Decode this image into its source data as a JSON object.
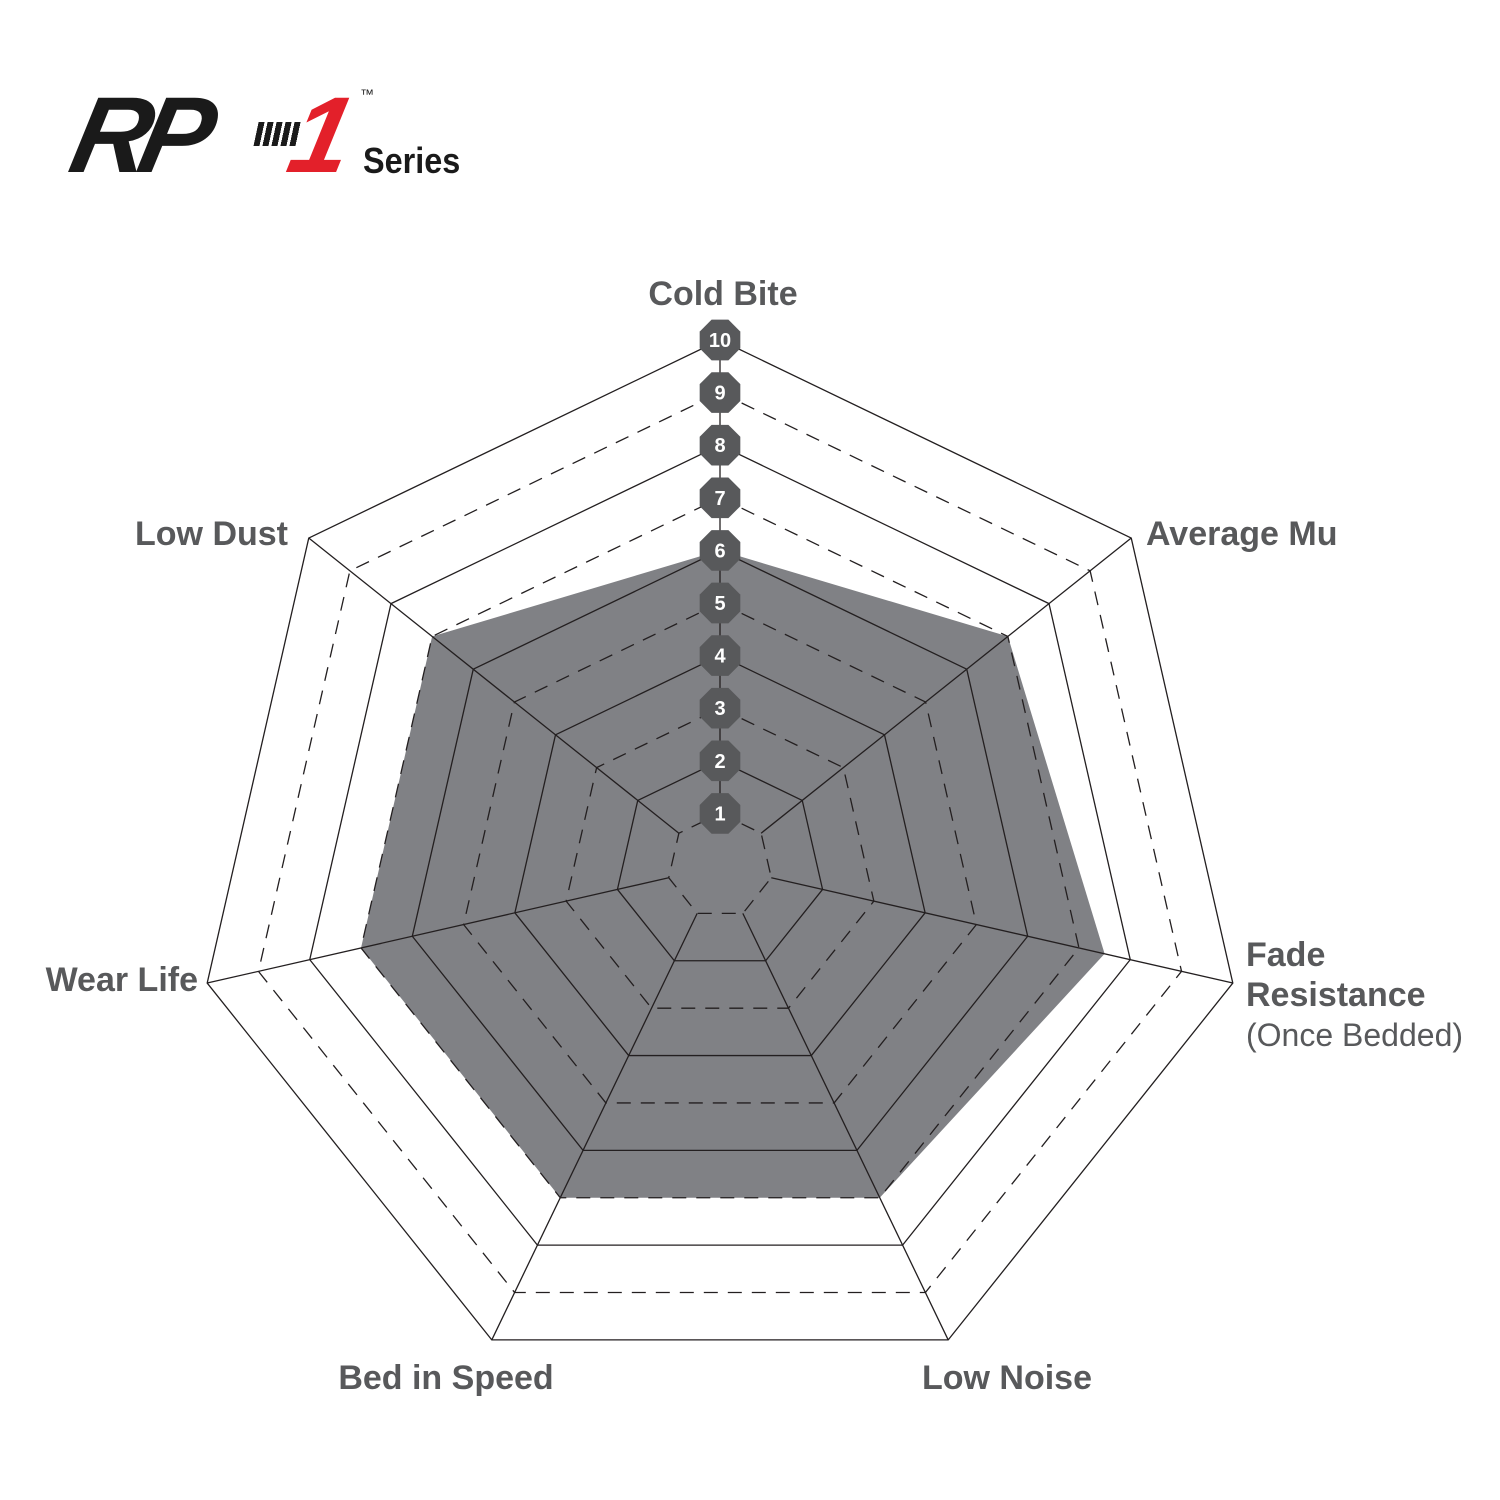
{
  "logo": {
    "text_rp": "RP",
    "text_one": "1",
    "trademark": "™",
    "series": "Series"
  },
  "chart_data": {
    "type": "radar",
    "axes": [
      "Cold Bite",
      "Average Mu",
      "Fade Resistance",
      "Low Noise",
      "Bed in Speed",
      "Wear Life",
      "Low Dust"
    ],
    "axis_sublabels": {
      "Fade Resistance": "(Once Bedded)"
    },
    "values": [
      6,
      7,
      7.5,
      7,
      7,
      7,
      7
    ],
    "range": [
      0,
      10
    ],
    "tick_labels": [
      "1",
      "2",
      "3",
      "4",
      "5",
      "6",
      "7",
      "8",
      "9",
      "10"
    ],
    "grid": "heptagonal rings, even levels solid, odd levels dashed",
    "colors": {
      "fill": "#808185",
      "grid": "#231f20",
      "badge": "#58595b",
      "label": "#58595b",
      "logo_red": "#e3202a"
    }
  }
}
